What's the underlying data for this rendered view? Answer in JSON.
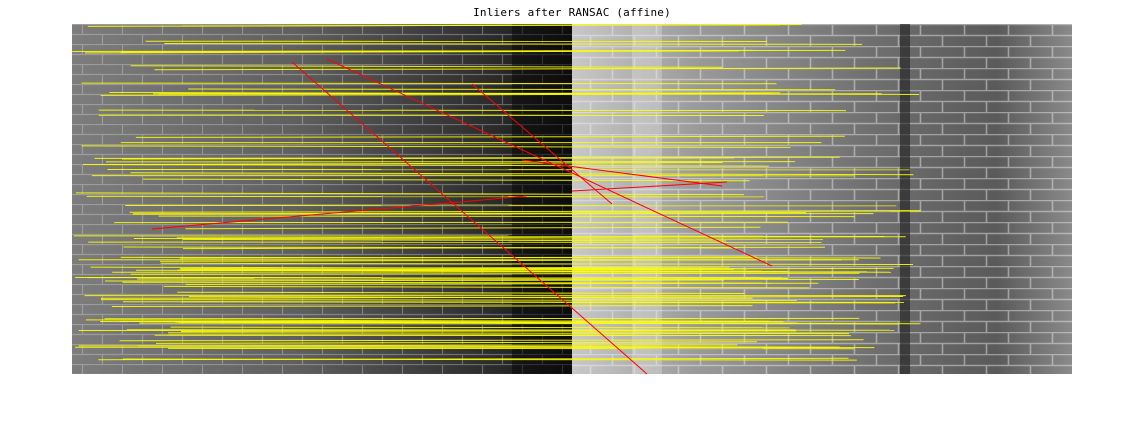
{
  "figure": {
    "title": "Inliers after RANSAC (affine)"
  },
  "colors": {
    "inlier_line": "#ffff00",
    "outlier_line": "#ff0000",
    "background": "#ffffff"
  }
}
